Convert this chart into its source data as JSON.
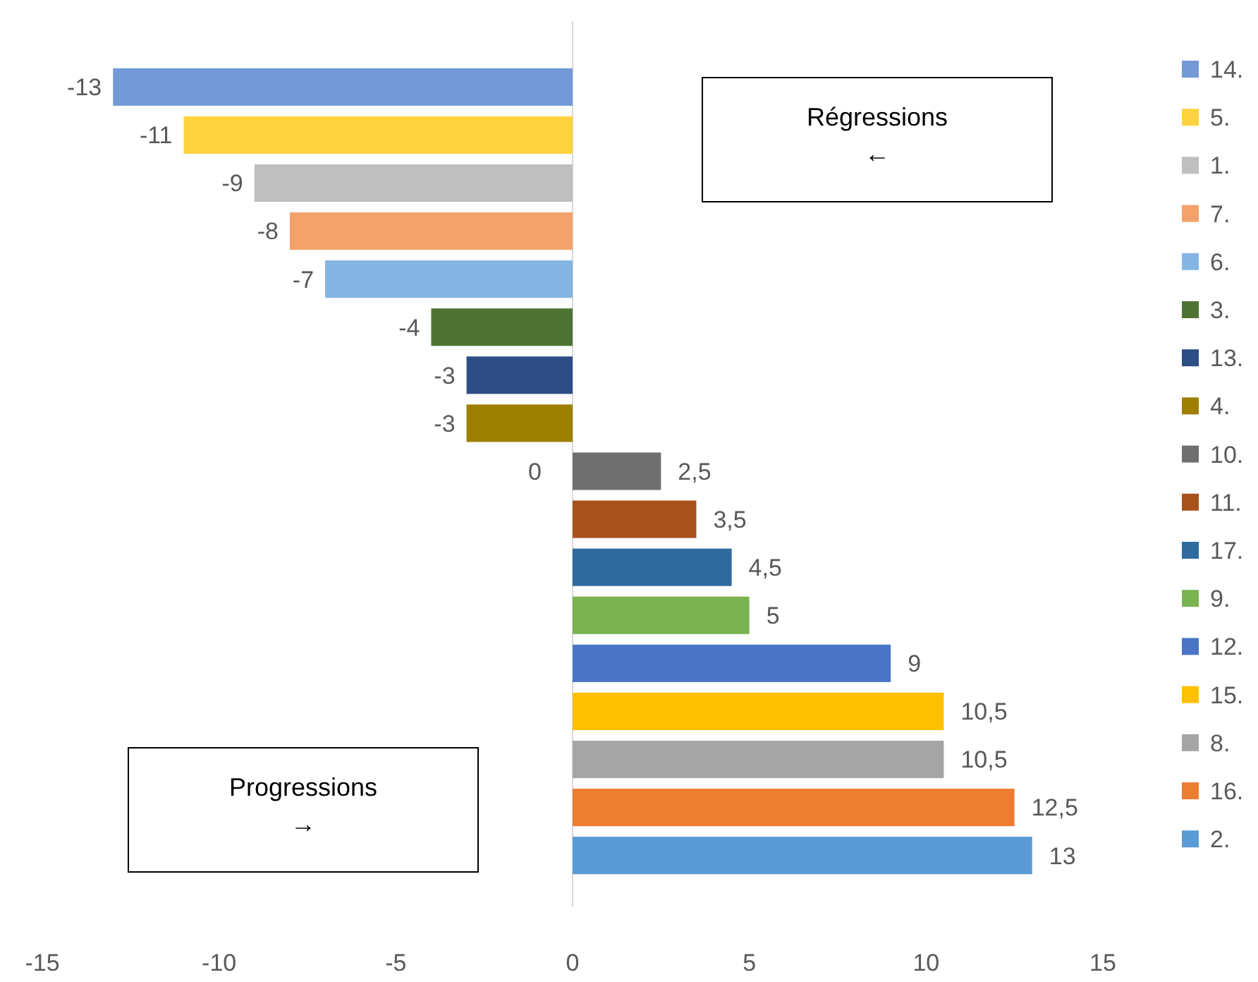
{
  "chart_data": {
    "type": "bar",
    "orientation": "horizontal",
    "stacked": true,
    "categories": [
      null,
      null,
      null,
      null,
      null,
      null,
      null,
      null,
      null,
      null,
      null,
      null,
      null,
      null,
      null,
      null,
      null
    ],
    "series": [
      {
        "name": "14.",
        "color": "#7399d7",
        "values": [
          -13,
          null,
          null,
          null,
          null,
          null,
          null,
          null,
          null,
          null,
          null,
          null,
          null,
          null,
          null,
          null,
          null
        ],
        "value_labels": [
          "-13",
          null,
          null,
          null,
          null,
          null,
          null,
          null,
          null,
          null,
          null,
          null,
          null,
          null,
          null,
          null,
          null
        ]
      },
      {
        "name": "5.",
        "color": "#ffd23f",
        "values": [
          null,
          -11,
          null,
          null,
          null,
          null,
          null,
          null,
          null,
          null,
          null,
          null,
          null,
          null,
          null,
          null,
          null
        ],
        "value_labels": [
          null,
          "-11",
          null,
          null,
          null,
          null,
          null,
          null,
          null,
          null,
          null,
          null,
          null,
          null,
          null,
          null,
          null
        ]
      },
      {
        "name": "1.",
        "color": "#bfbfbf",
        "values": [
          null,
          null,
          -9,
          null,
          null,
          null,
          null,
          null,
          null,
          null,
          null,
          null,
          null,
          null,
          null,
          null,
          null
        ],
        "value_labels": [
          null,
          null,
          "-9",
          null,
          null,
          null,
          null,
          null,
          null,
          null,
          null,
          null,
          null,
          null,
          null,
          null,
          null
        ]
      },
      {
        "name": "7.",
        "color": "#f4a26b",
        "values": [
          null,
          null,
          null,
          -8,
          null,
          null,
          null,
          null,
          null,
          null,
          null,
          null,
          null,
          null,
          null,
          null,
          null
        ],
        "value_labels": [
          null,
          null,
          null,
          "-8",
          null,
          null,
          null,
          null,
          null,
          null,
          null,
          null,
          null,
          null,
          null,
          null,
          null
        ]
      },
      {
        "name": "6.",
        "color": "#85b5e2",
        "values": [
          null,
          null,
          null,
          null,
          -7,
          null,
          null,
          null,
          null,
          null,
          null,
          null,
          null,
          null,
          null,
          null,
          null
        ],
        "value_labels": [
          null,
          null,
          null,
          null,
          "-7",
          null,
          null,
          null,
          null,
          null,
          null,
          null,
          null,
          null,
          null,
          null,
          null
        ]
      },
      {
        "name": "3.",
        "color": "#4e7233",
        "values": [
          null,
          null,
          null,
          null,
          null,
          -4,
          null,
          null,
          null,
          null,
          null,
          null,
          null,
          null,
          null,
          null,
          null
        ],
        "value_labels": [
          null,
          null,
          null,
          null,
          null,
          "-4",
          null,
          null,
          null,
          null,
          null,
          null,
          null,
          null,
          null,
          null,
          null
        ]
      },
      {
        "name": "13.",
        "color": "#2e4d85",
        "values": [
          null,
          null,
          null,
          null,
          null,
          null,
          -3,
          null,
          null,
          null,
          null,
          null,
          null,
          null,
          null,
          null,
          null
        ],
        "value_labels": [
          null,
          null,
          null,
          null,
          null,
          null,
          "-3",
          null,
          null,
          null,
          null,
          null,
          null,
          null,
          null,
          null,
          null
        ]
      },
      {
        "name": "4.",
        "color": "#9e7f00",
        "values": [
          null,
          null,
          null,
          null,
          null,
          null,
          null,
          -3,
          null,
          null,
          null,
          null,
          null,
          null,
          null,
          null,
          null
        ],
        "value_labels": [
          null,
          null,
          null,
          null,
          null,
          null,
          null,
          "-3",
          null,
          null,
          null,
          null,
          null,
          null,
          null,
          null,
          null
        ]
      },
      {
        "name": "10.",
        "color": "#6f6f6f",
        "values": [
          null,
          null,
          null,
          null,
          null,
          null,
          null,
          null,
          2.5,
          null,
          null,
          null,
          null,
          null,
          null,
          null,
          null
        ],
        "value_labels": [
          null,
          null,
          null,
          null,
          null,
          null,
          null,
          null,
          "2,5",
          null,
          null,
          null,
          null,
          null,
          null,
          null,
          null
        ]
      },
      {
        "name": "11.",
        "color": "#a9511a",
        "values": [
          null,
          null,
          null,
          null,
          null,
          null,
          null,
          null,
          null,
          3.5,
          null,
          null,
          null,
          null,
          null,
          null,
          null
        ],
        "value_labels": [
          null,
          null,
          null,
          null,
          null,
          null,
          null,
          null,
          null,
          "3,5",
          null,
          null,
          null,
          null,
          null,
          null,
          null
        ]
      },
      {
        "name": "17.",
        "color": "#2f6b9f",
        "values": [
          null,
          null,
          null,
          null,
          null,
          null,
          null,
          null,
          null,
          null,
          4.5,
          null,
          null,
          null,
          null,
          null,
          null
        ],
        "value_labels": [
          null,
          null,
          null,
          null,
          null,
          null,
          null,
          null,
          null,
          null,
          "4,5",
          null,
          null,
          null,
          null,
          null,
          null
        ]
      },
      {
        "name": "9.",
        "color": "#7ab350",
        "values": [
          null,
          null,
          null,
          null,
          null,
          null,
          null,
          null,
          null,
          null,
          null,
          5,
          null,
          null,
          null,
          null,
          null
        ],
        "value_labels": [
          null,
          null,
          null,
          null,
          null,
          null,
          null,
          null,
          null,
          null,
          null,
          "5",
          null,
          null,
          null,
          null,
          null
        ]
      },
      {
        "name": "12.",
        "color": "#4a75c6",
        "values": [
          null,
          null,
          null,
          null,
          null,
          null,
          null,
          null,
          null,
          null,
          null,
          null,
          9,
          null,
          null,
          null,
          null
        ],
        "value_labels": [
          null,
          null,
          null,
          null,
          null,
          null,
          null,
          null,
          null,
          null,
          null,
          null,
          "9",
          null,
          null,
          null,
          null
        ]
      },
      {
        "name": "15.",
        "color": "#ffc000",
        "values": [
          null,
          null,
          null,
          null,
          null,
          null,
          null,
          null,
          null,
          null,
          null,
          null,
          null,
          10.5,
          null,
          null,
          null
        ],
        "value_labels": [
          null,
          null,
          null,
          null,
          null,
          null,
          null,
          null,
          null,
          null,
          null,
          null,
          null,
          "10,5",
          null,
          null,
          null
        ]
      },
      {
        "name": "8.",
        "color": "#a5a5a5",
        "values": [
          null,
          null,
          null,
          null,
          null,
          null,
          null,
          null,
          null,
          null,
          null,
          null,
          null,
          null,
          10.5,
          null,
          null
        ],
        "value_labels": [
          null,
          null,
          null,
          null,
          null,
          null,
          null,
          null,
          null,
          null,
          null,
          null,
          null,
          null,
          "10,5",
          null,
          null
        ]
      },
      {
        "name": "16.",
        "color": "#ed7d31",
        "values": [
          null,
          null,
          null,
          null,
          null,
          null,
          null,
          null,
          null,
          null,
          null,
          null,
          null,
          null,
          null,
          12.5,
          null
        ],
        "value_labels": [
          null,
          null,
          null,
          null,
          null,
          null,
          null,
          null,
          null,
          null,
          null,
          null,
          null,
          null,
          null,
          "12,5",
          null
        ]
      },
      {
        "name": "2.",
        "color": "#5b9bd5",
        "values": [
          null,
          null,
          null,
          null,
          null,
          null,
          null,
          null,
          null,
          null,
          null,
          null,
          null,
          null,
          null,
          null,
          13
        ],
        "value_labels": [
          null,
          null,
          null,
          null,
          null,
          null,
          null,
          null,
          null,
          null,
          null,
          null,
          null,
          null,
          null,
          null,
          "13"
        ]
      }
    ],
    "xlim": [
      -15,
      15
    ],
    "xticks": [
      -15,
      -10,
      -5,
      0,
      5,
      10,
      15
    ],
    "tick_labels": "x",
    "legend": "right",
    "annotations": [
      {
        "text": "0",
        "x": 0
      },
      "Régressions\n←",
      "Progressions\n→"
    ]
  }
}
